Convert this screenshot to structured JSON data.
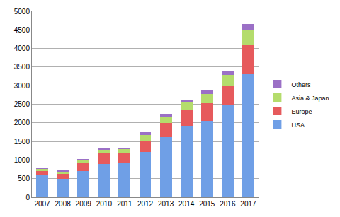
{
  "chart_data": {
    "type": "bar",
    "stacked": true,
    "categories": [
      "2007",
      "2008",
      "2009",
      "2010",
      "2011",
      "2012",
      "2013",
      "2014",
      "2015",
      "2016",
      "2017"
    ],
    "series": [
      {
        "name": "USA",
        "color": "#6f9fe6",
        "values": [
          590,
          500,
          700,
          900,
          930,
          1210,
          1610,
          1920,
          2060,
          2470,
          3330
        ]
      },
      {
        "name": "Europe",
        "color": "#e65a5c",
        "values": [
          110,
          120,
          230,
          270,
          270,
          300,
          390,
          440,
          470,
          540,
          760
        ]
      },
      {
        "name": "Asia & Japan",
        "color": "#b4dc6c",
        "values": [
          70,
          70,
          70,
          100,
          100,
          170,
          160,
          180,
          240,
          280,
          420
        ]
      },
      {
        "name": "Others",
        "color": "#9b70c6",
        "values": [
          30,
          30,
          30,
          40,
          40,
          70,
          80,
          90,
          100,
          100,
          140
        ]
      }
    ],
    "ylim": [
      0,
      5000
    ],
    "yticks": [
      0,
      500,
      1000,
      1500,
      2000,
      2500,
      3000,
      3500,
      4000,
      4500,
      5000
    ],
    "grid": true,
    "legend": "right"
  }
}
